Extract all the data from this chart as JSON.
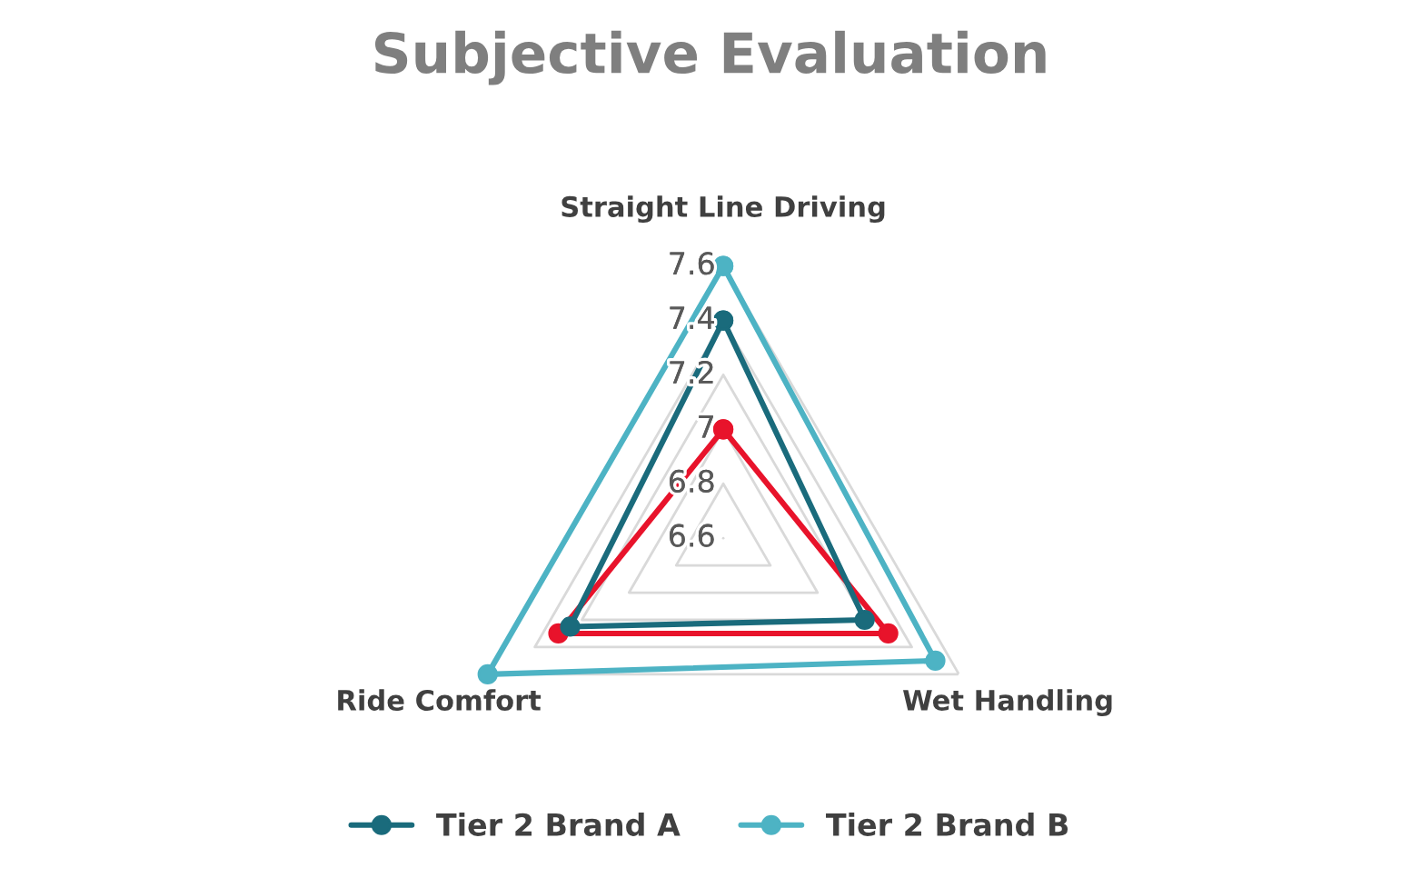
{
  "chart_data": {
    "type": "radar",
    "title": "Subjective Evaluation",
    "categories": [
      "Straight Line Driving",
      "Wet Handling",
      "Ride Comfort"
    ],
    "series": [
      {
        "color": "#e8132b",
        "values": [
          7.0,
          7.3,
          7.3
        ]
      },
      {
        "name": "Tier 2 Brand A",
        "color": "#1a6b7c",
        "values": [
          7.4,
          7.2,
          7.25
        ]
      },
      {
        "name": "Tier 2 Brand B",
        "color": "#4db3c4",
        "values": [
          7.6,
          7.5,
          7.6
        ]
      }
    ],
    "ylim": [
      6.6,
      7.6
    ],
    "yticks": [
      6.6,
      6.8,
      7,
      7.2,
      7.4,
      7.6
    ],
    "grid": true,
    "legend": "bottom",
    "marker": "circle",
    "line_style": "solid"
  }
}
